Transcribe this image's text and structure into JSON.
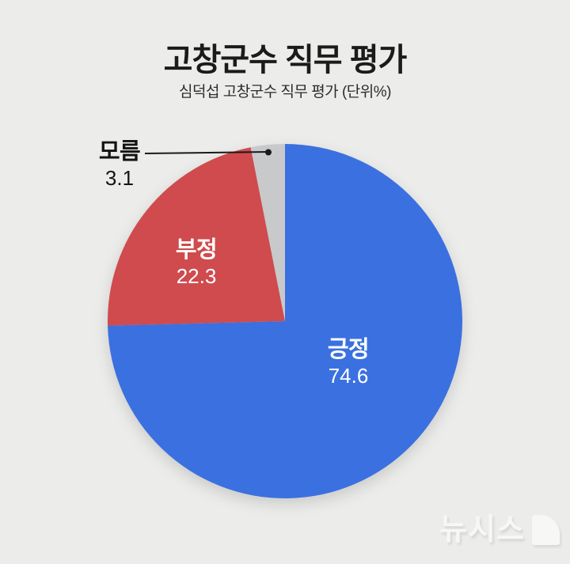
{
  "page": {
    "background_color": "#ECECEA"
  },
  "chart_data": {
    "type": "pie",
    "title": "고창군수 직무 평가",
    "subtitle": "심덕섭 고창군수 직무 평가 (단위%)",
    "labels": [
      "긍정",
      "부정",
      "모름"
    ],
    "values": [
      74.6,
      22.3,
      3.1
    ],
    "unit": "%",
    "colors": [
      "#3B70E0",
      "#CF4B4E",
      "#C8C9CB"
    ],
    "start_angle_deg": 0,
    "direction": "clockwise",
    "legend": "none",
    "label_text_colors": [
      "#FFFFFF",
      "#FFFFFF",
      "#141414"
    ],
    "annotation": {
      "leader_line_color": "#1A1A1A",
      "leader_for_label": "모름"
    }
  },
  "watermark": {
    "text": "뉴시스"
  }
}
